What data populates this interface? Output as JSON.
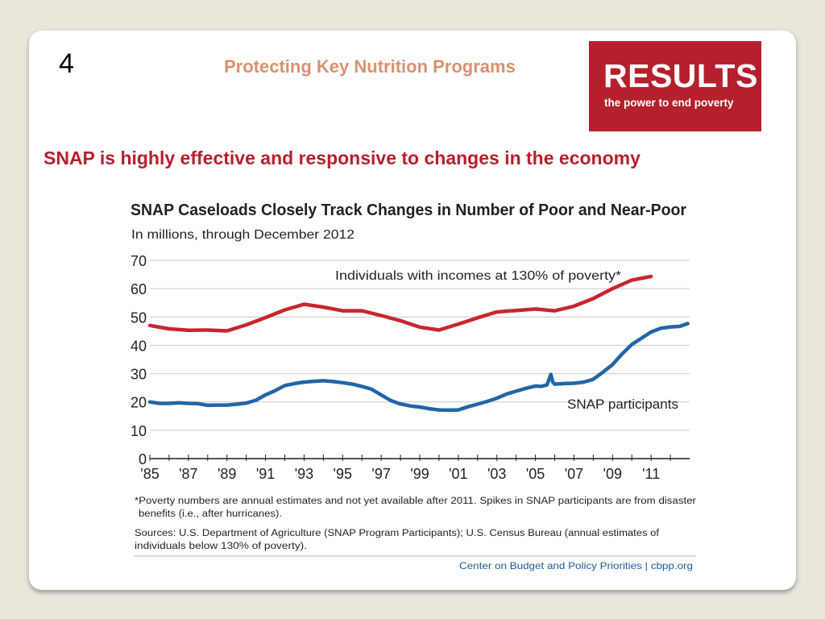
{
  "slide": {
    "number": "4",
    "header_title": "Protecting Key Nutrition Programs",
    "headline": "SNAP is highly effective and responsive to changes in the economy"
  },
  "logo": {
    "word": "RESULTS",
    "tagline": "the power to end poverty",
    "color": "#b5202d"
  },
  "chart_data": {
    "type": "line",
    "title": "SNAP Caseloads Closely Track Changes in Number of Poor and Near-Poor",
    "subtitle": "In millions, through December 2012",
    "ylim": [
      0,
      70
    ],
    "yticks": [
      0,
      10,
      20,
      30,
      40,
      50,
      60,
      70
    ],
    "xlim": [
      1985,
      2013
    ],
    "xtick_labels": [
      "'85",
      "'87",
      "'89",
      "'91",
      "'93",
      "'95",
      "'97",
      "'99",
      "'01",
      "'03",
      "'05",
      "'07",
      "'09",
      "'11"
    ],
    "xtick_values": [
      1985,
      1987,
      1989,
      1991,
      1993,
      1995,
      1997,
      1999,
      2001,
      2003,
      2005,
      2007,
      2009,
      2011
    ],
    "grid": true,
    "series": [
      {
        "name": "Individuals with incomes at 130% of poverty*",
        "color": "#c8262f",
        "x": [
          1985,
          1986,
          1987,
          1988,
          1989,
          1990,
          1991,
          1992,
          1993,
          1994,
          1995,
          1996,
          1997,
          1998,
          1999,
          2000,
          2001,
          2002,
          2003,
          2004,
          2005,
          2006,
          2007,
          2008,
          2009,
          2010,
          2011
        ],
        "values": [
          47,
          45.8,
          45.3,
          45.4,
          45.1,
          47.2,
          49.8,
          52.5,
          54.5,
          53.5,
          52.2,
          52.2,
          50.5,
          48.7,
          46.4,
          45.4,
          47.5,
          49.7,
          51.8,
          52.3,
          52.8,
          52.2,
          53.8,
          56.5,
          60,
          63,
          64.3
        ]
      },
      {
        "name": "SNAP participants",
        "color": "#2166a6",
        "x": [
          1985,
          1985.5,
          1986,
          1986.5,
          1987,
          1987.5,
          1988,
          1988.5,
          1989,
          1989.5,
          1990,
          1990.5,
          1991,
          1991.5,
          1992,
          1992.5,
          1993,
          1993.5,
          1994,
          1994.5,
          1995,
          1995.5,
          1996,
          1996.5,
          1997,
          1997.5,
          1998,
          1998.5,
          1999,
          1999.5,
          2000,
          2000.5,
          2001,
          2001.5,
          2002,
          2002.5,
          2003,
          2003.5,
          2004,
          2004.5,
          2005,
          2005.3,
          2005.6,
          2005.8,
          2005.9,
          2006,
          2006.5,
          2007,
          2007.5,
          2008,
          2008.5,
          2009,
          2009.5,
          2010,
          2010.5,
          2011,
          2011.5,
          2012,
          2012.5,
          2012.9
        ],
        "values": [
          20,
          19.5,
          19.5,
          19.7,
          19.5,
          19.4,
          18.8,
          18.9,
          18.9,
          19.2,
          19.6,
          20.6,
          22.5,
          24,
          25.8,
          26.5,
          27,
          27.3,
          27.5,
          27.2,
          26.8,
          26.3,
          25.5,
          24.5,
          22.5,
          20.5,
          19.3,
          18.6,
          18.2,
          17.6,
          17.2,
          17.1,
          17.2,
          18.3,
          19.2,
          20.2,
          21.3,
          22.8,
          23.8,
          24.8,
          25.6,
          25.5,
          26,
          29.7,
          27,
          26.3,
          26.5,
          26.6,
          27,
          28,
          30.5,
          33.2,
          37,
          40.3,
          42.5,
          44.7,
          46,
          46.5,
          46.7,
          47.7
        ]
      }
    ],
    "annotations": [
      "*Poverty numbers are annual estimates and not yet available after 2011. Spikes in SNAP participants are from disaster",
      "benefits (i.e., after hurricanes).",
      "Sources: U.S. Department of Agriculture (SNAP Program Participants); U.S. Census Bureau (annual estimates of",
      "individuals below 130% of poverty)."
    ],
    "source_credit": "Center on Budget and Policy Priorities | cbpp.org"
  }
}
